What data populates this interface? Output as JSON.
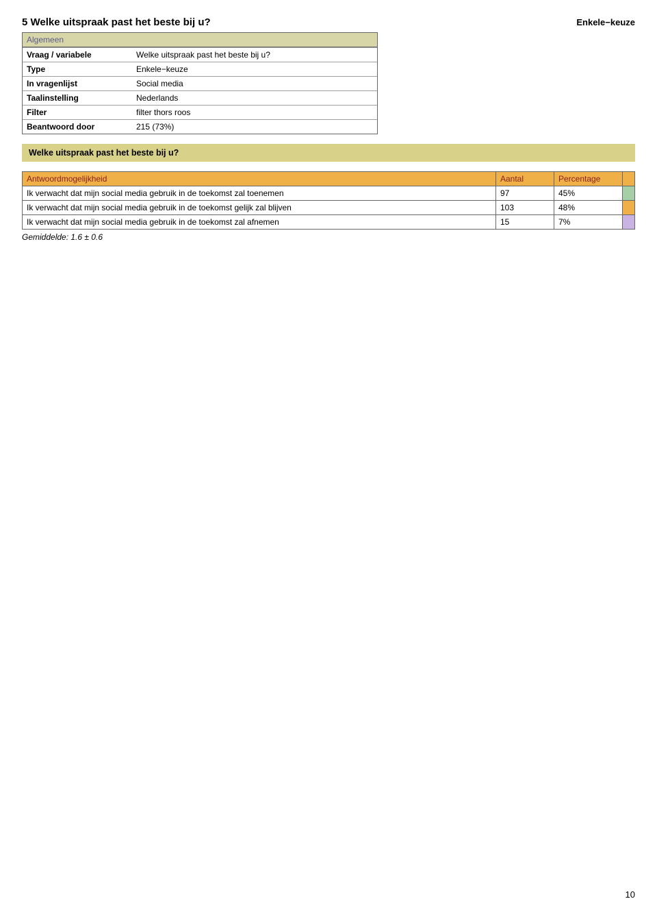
{
  "colors": {
    "band_bg": "#d7d18a",
    "meta_header_bg": "#d6d6a8",
    "meta_header_text": "#5a5a8a",
    "results_header_bg": "#f0b048",
    "results_header_text": "#882020",
    "swatch_header": "#f0b048",
    "swatches": [
      "#a7cfa7",
      "#f0b048",
      "#c9b3e2"
    ]
  },
  "header": {
    "title": "5 Welke uitspraak past het beste bij u?",
    "type_label": "Enkele−keuze"
  },
  "meta": {
    "section_label": "Algemeen",
    "rows": [
      {
        "key": "Vraag / variabele",
        "val": "Welke uitspraak past het beste bij u?"
      },
      {
        "key": "Type",
        "val": "Enkele−keuze"
      },
      {
        "key": "In vragenlijst",
        "val": "Social media"
      },
      {
        "key": "Taalinstelling",
        "val": "Nederlands"
      },
      {
        "key": "Filter",
        "val": "filter thors roos"
      },
      {
        "key": "Beantwoord door",
        "val": "215 (73%)"
      }
    ]
  },
  "band_text": "Welke uitspraak past het beste bij u?",
  "results": {
    "columns": {
      "label": "Antwoordmogelijkheid",
      "aantal": "Aantal",
      "pct": "Percentage"
    },
    "rows": [
      {
        "label": "Ik verwacht dat mijn social media gebruik in de toekomst zal toenemen",
        "aantal": "97",
        "pct": "45%"
      },
      {
        "label": "Ik verwacht dat mijn social media gebruik in de toekomst gelijk zal blijven",
        "aantal": "103",
        "pct": "48%"
      },
      {
        "label": "Ik verwacht dat mijn social media gebruik in de toekomst zal afnemen",
        "aantal": "15",
        "pct": "7%"
      }
    ]
  },
  "average_text": "Gemiddelde: 1.6 ± 0.6",
  "page_number": "10"
}
